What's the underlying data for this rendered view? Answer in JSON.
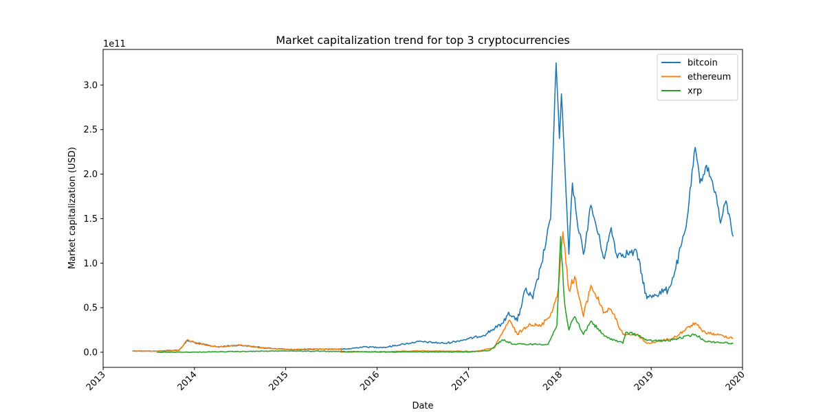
{
  "chart_data": {
    "type": "line",
    "title": "Market capitalization trend for top 3 cryptocurrencies",
    "xlabel": "Date",
    "ylabel": "Market capitalization (USD)",
    "y_offset_label": "1e11",
    "xlim": [
      "2013-01-01",
      "2020-01-01"
    ],
    "ylim": [
      -17000000000.0,
      340000000000.0
    ],
    "x_ticks": [
      "2013",
      "2014",
      "2015",
      "2016",
      "2017",
      "2018",
      "2019",
      "2020"
    ],
    "y_ticks": [
      "0.0",
      "0.5",
      "1.0",
      "1.5",
      "2.0",
      "2.5",
      "3.0"
    ],
    "y_tick_values": [
      0,
      50000000000.0,
      100000000000.0,
      150000000000.0,
      200000000000.0,
      250000000000.0,
      300000000000.0
    ],
    "grid": false,
    "legend_position": "top-right",
    "series": [
      {
        "name": "bitcoin",
        "color": "#1f77b4",
        "points": [
          [
            "2013-04-28",
            1500000000.0
          ],
          [
            "2013-08-01",
            1200000000.0
          ],
          [
            "2013-11-01",
            2500000000.0
          ],
          [
            "2013-12-04",
            13000000000.0
          ],
          [
            "2014-01-15",
            10000000000.0
          ],
          [
            "2014-04-01",
            6000000000.0
          ],
          [
            "2014-07-01",
            8000000000.0
          ],
          [
            "2014-10-01",
            5000000000.0
          ],
          [
            "2015-01-15",
            3000000000.0
          ],
          [
            "2015-06-01",
            3500000000.0
          ],
          [
            "2015-09-01",
            3500000000.0
          ],
          [
            "2015-11-05",
            6000000000.0
          ],
          [
            "2016-02-01",
            5500000000.0
          ],
          [
            "2016-06-15",
            12000000000.0
          ],
          [
            "2016-10-01",
            10000000000.0
          ],
          [
            "2016-12-31",
            15000000000.0
          ],
          [
            "2017-03-01",
            19000000000.0
          ],
          [
            "2017-05-20",
            33000000000.0
          ],
          [
            "2017-06-10",
            45000000000.0
          ],
          [
            "2017-07-15",
            35000000000.0
          ],
          [
            "2017-08-15",
            70000000000.0
          ],
          [
            "2017-09-15",
            60000000000.0
          ],
          [
            "2017-10-20",
            100000000000.0
          ],
          [
            "2017-11-25",
            150000000000.0
          ],
          [
            "2017-12-17",
            325000000000.0
          ],
          [
            "2017-12-30",
            240000000000.0
          ],
          [
            "2018-01-07",
            290000000000.0
          ],
          [
            "2018-02-06",
            110000000000.0
          ],
          [
            "2018-02-20",
            190000000000.0
          ],
          [
            "2018-03-10",
            150000000000.0
          ],
          [
            "2018-04-05",
            110000000000.0
          ],
          [
            "2018-05-05",
            165000000000.0
          ],
          [
            "2018-06-28",
            105000000000.0
          ],
          [
            "2018-07-25",
            140000000000.0
          ],
          [
            "2018-08-15",
            110000000000.0
          ],
          [
            "2018-11-05",
            112000000000.0
          ],
          [
            "2018-12-15",
            60000000000.0
          ],
          [
            "2019-01-15",
            65000000000.0
          ],
          [
            "2019-03-10",
            70000000000.0
          ],
          [
            "2019-04-05",
            90000000000.0
          ],
          [
            "2019-05-20",
            140000000000.0
          ],
          [
            "2019-06-26",
            230000000000.0
          ],
          [
            "2019-07-15",
            190000000000.0
          ],
          [
            "2019-08-10",
            210000000000.0
          ],
          [
            "2019-09-15",
            180000000000.0
          ],
          [
            "2019-10-05",
            145000000000.0
          ],
          [
            "2019-10-27",
            170000000000.0
          ],
          [
            "2019-11-25",
            130000000000.0
          ]
        ]
      },
      {
        "name": "ethereum",
        "color": "#ff7f0e",
        "points": [
          [
            "2013-04-28",
            1400000000.0
          ],
          [
            "2013-09-01",
            1200000000.0
          ],
          [
            "2013-11-01",
            2000000000.0
          ],
          [
            "2013-12-04",
            14000000000.0
          ],
          [
            "2014-01-15",
            10000000000.0
          ],
          [
            "2014-04-01",
            6000000000.0
          ],
          [
            "2014-07-01",
            8000000000.0
          ],
          [
            "2014-10-01",
            5000000000.0
          ],
          [
            "2015-01-15",
            3000000000.0
          ],
          [
            "2015-06-01",
            3500000000.0
          ],
          [
            "2015-08-10",
            3500000000.0
          ],
          [
            "2015-08-11",
            50000000.0
          ],
          [
            "2016-03-15",
            800000000.0
          ],
          [
            "2016-06-15",
            1500000000.0
          ],
          [
            "2017-02-01",
            1000000000.0
          ],
          [
            "2017-04-15",
            5000000000.0
          ],
          [
            "2017-06-12",
            36000000000.0
          ],
          [
            "2017-07-15",
            20000000000.0
          ],
          [
            "2017-09-01",
            32000000000.0
          ],
          [
            "2017-10-15",
            29000000000.0
          ],
          [
            "2017-12-01",
            45000000000.0
          ],
          [
            "2017-12-25",
            70000000000.0
          ],
          [
            "2018-01-13",
            135000000000.0
          ],
          [
            "2018-02-06",
            70000000000.0
          ],
          [
            "2018-03-01",
            85000000000.0
          ],
          [
            "2018-04-05",
            40000000000.0
          ],
          [
            "2018-05-05",
            75000000000.0
          ],
          [
            "2018-06-28",
            45000000000.0
          ],
          [
            "2018-07-25",
            48000000000.0
          ],
          [
            "2018-09-10",
            20000000000.0
          ],
          [
            "2018-11-05",
            20000000000.0
          ],
          [
            "2018-12-15",
            10000000000.0
          ],
          [
            "2019-02-01",
            12000000000.0
          ],
          [
            "2019-04-01",
            16000000000.0
          ],
          [
            "2019-06-26",
            33000000000.0
          ],
          [
            "2019-07-25",
            23000000000.0
          ],
          [
            "2019-09-15",
            20000000000.0
          ],
          [
            "2019-11-25",
            16000000000.0
          ]
        ]
      },
      {
        "name": "xrp",
        "color": "#2ca02c",
        "points": [
          [
            "2013-08-04",
            0
          ],
          [
            "2014-01-01",
            100000000.0
          ],
          [
            "2015-01-01",
            1500000000.0
          ],
          [
            "2016-01-01",
            300000000.0
          ],
          [
            "2017-01-01",
            300000000.0
          ],
          [
            "2017-03-25",
            2000000000.0
          ],
          [
            "2017-05-16",
            14000000000.0
          ],
          [
            "2017-07-01",
            9000000000.0
          ],
          [
            "2017-09-01",
            9000000000.0
          ],
          [
            "2017-11-15",
            9000000000.0
          ],
          [
            "2017-12-20",
            30000000000.0
          ],
          [
            "2018-01-04",
            130000000000.0
          ],
          [
            "2018-01-20",
            55000000000.0
          ],
          [
            "2018-02-06",
            25000000000.0
          ],
          [
            "2018-03-01",
            40000000000.0
          ],
          [
            "2018-04-05",
            20000000000.0
          ],
          [
            "2018-05-05",
            35000000000.0
          ],
          [
            "2018-06-28",
            18000000000.0
          ],
          [
            "2018-09-10",
            10000000000.0
          ],
          [
            "2018-09-21",
            22000000000.0
          ],
          [
            "2018-11-05",
            20000000000.0
          ],
          [
            "2018-12-15",
            13000000000.0
          ],
          [
            "2019-03-10",
            13000000000.0
          ],
          [
            "2019-06-26",
            20000000000.0
          ],
          [
            "2019-08-10",
            12000000000.0
          ],
          [
            "2019-11-25",
            10000000000.0
          ]
        ]
      }
    ]
  }
}
